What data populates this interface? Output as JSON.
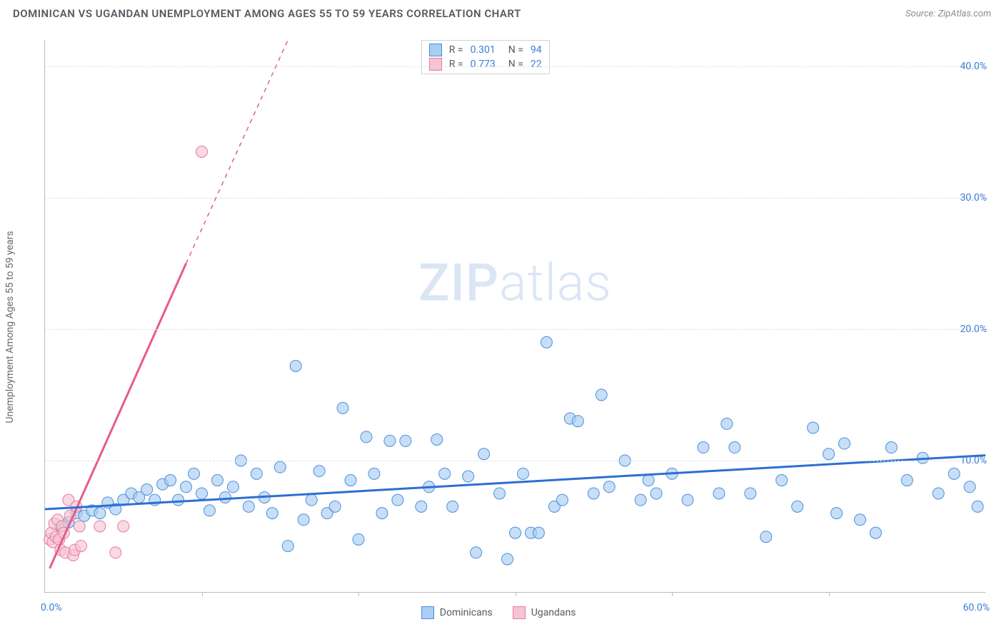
{
  "header": {
    "title": "DOMINICAN VS UGANDAN UNEMPLOYMENT AMONG AGES 55 TO 59 YEARS CORRELATION CHART",
    "source_prefix": "Source: ",
    "source_name": "ZipAtlas.com"
  },
  "chart": {
    "type": "scatter",
    "y_axis_label": "Unemployment Among Ages 55 to 59 years",
    "xlim": [
      0,
      60
    ],
    "ylim": [
      0,
      42
    ],
    "x_ticks": [
      10,
      20,
      30,
      40,
      50
    ],
    "x_tick_labels_shown": {
      "left": "0.0%",
      "right": "60.0%"
    },
    "y_ticks": [
      10,
      20,
      30,
      40
    ],
    "y_tick_labels": [
      "10.0%",
      "20.0%",
      "30.0%",
      "40.0%"
    ],
    "grid_color": "#dfe2e6",
    "axis_color": "#b8bcc2",
    "background_color": "#ffffff",
    "tick_label_color": "#3b7dd8",
    "tick_label_fontsize": 14,
    "marker_radius": 8,
    "marker_stroke_width": 1,
    "trend_line_width": 3,
    "trend_dash_width": 1.5,
    "series": {
      "dominicans": {
        "label": "Dominicans",
        "r_value": "0.301",
        "n_value": "94",
        "fill": "#a9cdf3",
        "stroke": "#4b8fdd",
        "trend_color": "#2d6fd0",
        "trend": {
          "x1": 0,
          "y1": 6.3,
          "x2": 60,
          "y2": 10.4
        },
        "points": [
          [
            1.0,
            5.0
          ],
          [
            1.5,
            5.3
          ],
          [
            2.0,
            6.0
          ],
          [
            2.5,
            5.8
          ],
          [
            3.0,
            6.2
          ],
          [
            3.5,
            6.0
          ],
          [
            4.0,
            6.8
          ],
          [
            4.5,
            6.3
          ],
          [
            5.0,
            7.0
          ],
          [
            5.5,
            7.5
          ],
          [
            6.0,
            7.2
          ],
          [
            6.5,
            7.8
          ],
          [
            7.0,
            7.0
          ],
          [
            7.5,
            8.2
          ],
          [
            8.0,
            8.5
          ],
          [
            8.5,
            7.0
          ],
          [
            9.0,
            8.0
          ],
          [
            9.5,
            9.0
          ],
          [
            10.0,
            7.5
          ],
          [
            10.5,
            6.2
          ],
          [
            11.0,
            8.5
          ],
          [
            11.5,
            7.2
          ],
          [
            12.0,
            8.0
          ],
          [
            12.5,
            10.0
          ],
          [
            13.0,
            6.5
          ],
          [
            13.5,
            9.0
          ],
          [
            14.0,
            7.2
          ],
          [
            14.5,
            6.0
          ],
          [
            15.0,
            9.5
          ],
          [
            15.5,
            3.5
          ],
          [
            16.0,
            17.2
          ],
          [
            16.5,
            5.5
          ],
          [
            17.0,
            7.0
          ],
          [
            17.5,
            9.2
          ],
          [
            18.0,
            6.0
          ],
          [
            18.5,
            6.5
          ],
          [
            19.0,
            14.0
          ],
          [
            19.5,
            8.5
          ],
          [
            20.0,
            4.0
          ],
          [
            20.5,
            11.8
          ],
          [
            21.0,
            9.0
          ],
          [
            21.5,
            6.0
          ],
          [
            22.0,
            11.5
          ],
          [
            22.5,
            7.0
          ],
          [
            23.0,
            11.5
          ],
          [
            24.0,
            6.5
          ],
          [
            24.5,
            8.0
          ],
          [
            25.0,
            11.6
          ],
          [
            25.5,
            9.0
          ],
          [
            26.0,
            6.5
          ],
          [
            27.0,
            8.8
          ],
          [
            27.5,
            3.0
          ],
          [
            28.0,
            10.5
          ],
          [
            29.0,
            7.5
          ],
          [
            29.5,
            2.5
          ],
          [
            30.0,
            4.5
          ],
          [
            30.5,
            9.0
          ],
          [
            31.0,
            4.5
          ],
          [
            31.5,
            4.5
          ],
          [
            32.0,
            19.0
          ],
          [
            32.5,
            6.5
          ],
          [
            33.0,
            7.0
          ],
          [
            33.5,
            13.2
          ],
          [
            34.0,
            13.0
          ],
          [
            35.0,
            7.5
          ],
          [
            35.5,
            15.0
          ],
          [
            36.0,
            8.0
          ],
          [
            37.0,
            10.0
          ],
          [
            38.0,
            7.0
          ],
          [
            38.5,
            8.5
          ],
          [
            39.0,
            7.5
          ],
          [
            40.0,
            9.0
          ],
          [
            41.0,
            7.0
          ],
          [
            42.0,
            11.0
          ],
          [
            43.0,
            7.5
          ],
          [
            43.5,
            12.8
          ],
          [
            44.0,
            11.0
          ],
          [
            45.0,
            7.5
          ],
          [
            46.0,
            4.2
          ],
          [
            47.0,
            8.5
          ],
          [
            48.0,
            6.5
          ],
          [
            49.0,
            12.5
          ],
          [
            50.0,
            10.5
          ],
          [
            50.5,
            6.0
          ],
          [
            51.0,
            11.3
          ],
          [
            52.0,
            5.5
          ],
          [
            53.0,
            4.5
          ],
          [
            54.0,
            11.0
          ],
          [
            55.0,
            8.5
          ],
          [
            56.0,
            10.2
          ],
          [
            57.0,
            7.5
          ],
          [
            58.0,
            9.0
          ],
          [
            59.0,
            8.0
          ],
          [
            59.5,
            6.5
          ]
        ]
      },
      "ugandans": {
        "label": "Ugandans",
        "r_value": "0.773",
        "n_value": "22",
        "fill": "#f6c4d3",
        "stroke": "#e77aa0",
        "trend_color": "#e85a8c",
        "trend_solid": {
          "x1": 0.3,
          "y1": 1.8,
          "x2": 9.0,
          "y2": 25.0
        },
        "trend_dash": {
          "x1": 9.0,
          "y1": 25.0,
          "x2": 15.5,
          "y2": 42.0
        },
        "points": [
          [
            0.3,
            4.0
          ],
          [
            0.4,
            4.5
          ],
          [
            0.5,
            3.8
          ],
          [
            0.6,
            5.2
          ],
          [
            0.7,
            4.2
          ],
          [
            0.8,
            5.5
          ],
          [
            0.9,
            4.0
          ],
          [
            1.0,
            3.2
          ],
          [
            1.1,
            5.0
          ],
          [
            1.2,
            4.5
          ],
          [
            1.3,
            3.0
          ],
          [
            1.5,
            7.0
          ],
          [
            1.6,
            5.8
          ],
          [
            1.8,
            2.8
          ],
          [
            1.9,
            3.2
          ],
          [
            2.0,
            6.5
          ],
          [
            2.2,
            5.0
          ],
          [
            2.3,
            3.5
          ],
          [
            3.5,
            5.0
          ],
          [
            4.5,
            3.0
          ],
          [
            5.0,
            5.0
          ],
          [
            10.0,
            33.5
          ]
        ]
      }
    },
    "legend_top": {
      "r_label": "R =",
      "n_label": "N ="
    },
    "legend_bottom": [
      {
        "key": "dominicans"
      },
      {
        "key": "ugandans"
      }
    ],
    "watermark": {
      "part1": "ZIP",
      "part2": "atlas"
    }
  }
}
